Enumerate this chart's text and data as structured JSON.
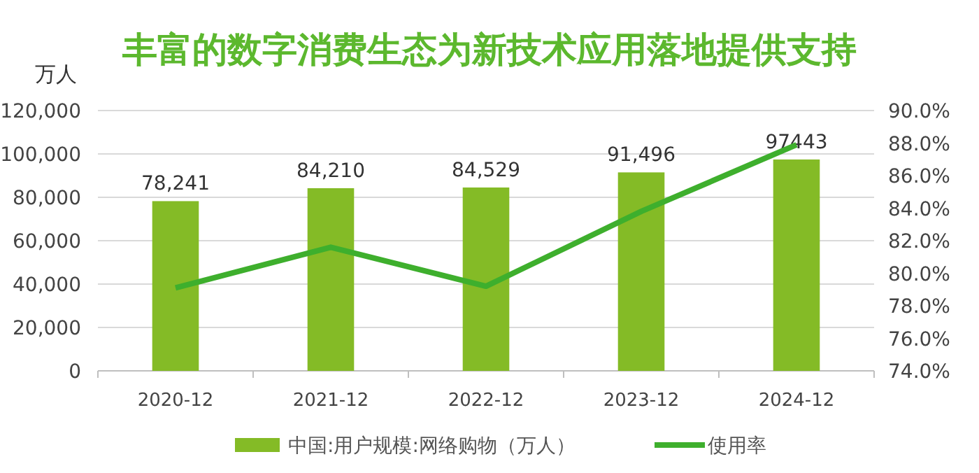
{
  "chart_data": {
    "type": "bar",
    "title": "丰富的数字消费生态为新技术应用落地提供支持",
    "ylabel": "万人",
    "categories": [
      "2020-12",
      "2021-12",
      "2022-12",
      "2023-12",
      "2024-12"
    ],
    "series": [
      {
        "name": "中国:用户规模:网络购物（万人）",
        "color": "#84bb26",
        "values": [
          78241,
          84210,
          84529,
          91496,
          97443
        ],
        "value_labels": [
          "78,241",
          "84,210",
          "84,529",
          "91,496",
          "97443"
        ]
      },
      {
        "name": "使用率",
        "type": "line",
        "axis": "y2",
        "color": "#3eaf2d",
        "values": [
          79.1,
          81.6,
          79.2,
          83.8,
          87.9
        ]
      }
    ],
    "ylim": [
      0,
      120000
    ],
    "yticks": [
      {
        "value": 0,
        "label": "0"
      },
      {
        "value": 20000,
        "label": "20,000"
      },
      {
        "value": 40000,
        "label": "40,000"
      },
      {
        "value": 60000,
        "label": "60,000"
      },
      {
        "value": 80000,
        "label": "80,000"
      },
      {
        "value": 100000,
        "label": "100,000"
      },
      {
        "value": 120000,
        "label": "120,000"
      }
    ],
    "y2lim": [
      74,
      90
    ],
    "y2ticks": [
      {
        "value": 74,
        "label": "74.0%"
      },
      {
        "value": 76,
        "label": "76.0%"
      },
      {
        "value": 78,
        "label": "78.0%"
      },
      {
        "value": 80,
        "label": "80.0%"
      },
      {
        "value": 82,
        "label": "82.0%"
      },
      {
        "value": 84,
        "label": "84.0%"
      },
      {
        "value": 86,
        "label": "86.0%"
      },
      {
        "value": 88,
        "label": "88.0%"
      },
      {
        "value": 90,
        "label": "90.0%"
      }
    ],
    "grid": "y",
    "legend": "bottom"
  }
}
